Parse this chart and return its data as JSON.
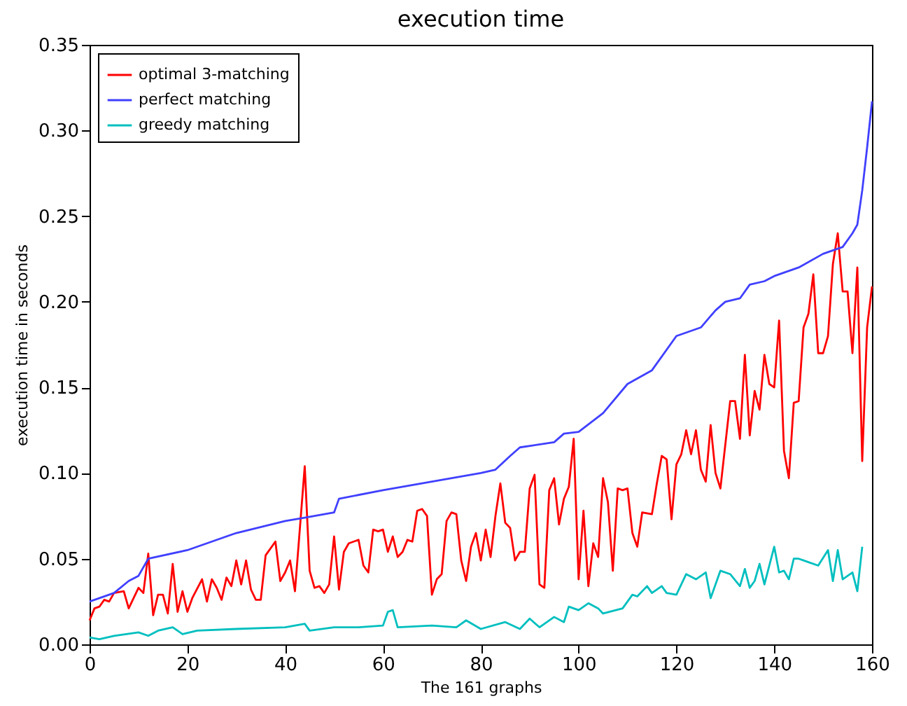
{
  "chart_data": {
    "type": "line",
    "title": "execution time",
    "xlabel": "The 161 graphs",
    "ylabel": "execution time in seconds",
    "xlim": [
      0,
      160
    ],
    "xticks": [
      0,
      20,
      40,
      60,
      80,
      100,
      120,
      140,
      160
    ],
    "ylim": [
      0,
      0.35
    ],
    "yticks": [
      {
        "value": 0,
        "label": "0.00"
      },
      {
        "value": 0.05,
        "label": "0.05"
      },
      {
        "value": 0.1,
        "label": "0.10"
      },
      {
        "value": 0.15,
        "label": "0.15"
      },
      {
        "value": 0.2,
        "label": "0.20"
      },
      {
        "value": 0.25,
        "label": "0.25"
      },
      {
        "value": 0.3,
        "label": "0.30"
      },
      {
        "value": 0.35,
        "label": "0.35"
      }
    ],
    "grid": false,
    "legend": "top left",
    "line_style": "solid",
    "series": [
      {
        "name": "optimal 3-matching",
        "color": "#ff0000",
        "x": [
          0,
          1,
          2,
          3,
          4,
          5,
          7,
          8,
          10,
          11,
          12,
          13,
          14,
          15,
          16,
          17,
          18,
          19,
          20,
          21,
          23,
          24,
          25,
          26,
          27,
          28,
          29,
          30,
          31,
          32,
          33,
          34,
          35,
          36,
          38,
          39,
          40,
          41,
          42,
          44,
          45,
          46,
          47,
          48,
          49,
          50,
          51,
          52,
          53,
          55,
          56,
          57,
          58,
          59,
          60,
          61,
          62,
          63,
          64,
          65,
          66,
          67,
          68,
          69,
          70,
          71,
          72,
          73,
          74,
          75,
          76,
          77,
          78,
          79,
          80,
          81,
          82,
          83,
          84,
          85,
          86,
          87,
          88,
          89,
          90,
          91,
          92,
          93,
          94,
          95,
          96,
          97,
          98,
          99,
          100,
          101,
          102,
          103,
          104,
          105,
          106,
          107,
          108,
          109,
          110,
          111,
          112,
          113,
          115,
          116,
          117,
          118,
          119,
          120,
          121,
          122,
          123,
          124,
          125,
          126,
          127,
          128,
          129,
          131,
          132,
          133,
          134,
          135,
          136,
          137,
          138,
          139,
          140,
          141,
          142,
          143,
          144,
          145,
          146,
          147,
          148,
          149,
          150,
          151,
          152,
          153,
          154,
          155,
          156,
          157,
          158,
          159,
          160
        ],
        "values": [
          0.014,
          0.021,
          0.022,
          0.026,
          0.025,
          0.03,
          0.031,
          0.021,
          0.033,
          0.03,
          0.053,
          0.017,
          0.029,
          0.029,
          0.018,
          0.047,
          0.019,
          0.031,
          0.019,
          0.027,
          0.038,
          0.025,
          0.038,
          0.033,
          0.026,
          0.039,
          0.034,
          0.049,
          0.035,
          0.049,
          0.032,
          0.026,
          0.026,
          0.052,
          0.06,
          0.037,
          0.042,
          0.049,
          0.031,
          0.104,
          0.043,
          0.033,
          0.034,
          0.03,
          0.035,
          0.063,
          0.032,
          0.054,
          0.059,
          0.061,
          0.046,
          0.042,
          0.067,
          0.066,
          0.067,
          0.054,
          0.063,
          0.051,
          0.054,
          0.061,
          0.06,
          0.078,
          0.079,
          0.075,
          0.029,
          0.038,
          0.041,
          0.072,
          0.077,
          0.076,
          0.049,
          0.037,
          0.057,
          0.065,
          0.049,
          0.067,
          0.051,
          0.075,
          0.094,
          0.071,
          0.068,
          0.049,
          0.054,
          0.054,
          0.091,
          0.099,
          0.035,
          0.033,
          0.09,
          0.097,
          0.07,
          0.085,
          0.092,
          0.12,
          0.038,
          0.078,
          0.034,
          0.059,
          0.051,
          0.097,
          0.083,
          0.043,
          0.091,
          0.09,
          0.091,
          0.065,
          0.057,
          0.077,
          0.076,
          0.094,
          0.11,
          0.108,
          0.073,
          0.105,
          0.111,
          0.125,
          0.111,
          0.125,
          0.102,
          0.095,
          0.128,
          0.1,
          0.091,
          0.142,
          0.142,
          0.12,
          0.169,
          0.122,
          0.148,
          0.137,
          0.169,
          0.152,
          0.15,
          0.189,
          0.113,
          0.097,
          0.141,
          0.142,
          0.185,
          0.193,
          0.216,
          0.17,
          0.17,
          0.18,
          0.222,
          0.24,
          0.206,
          0.206,
          0.17,
          0.22,
          0.107,
          0.185,
          0.209
        ]
      },
      {
        "name": "perfect matching",
        "color": "#4040ff",
        "x": [
          0,
          5,
          8,
          10,
          12,
          20,
          25,
          30,
          40,
          44,
          50,
          51,
          60,
          70,
          80,
          83,
          86,
          88,
          95,
          97,
          100,
          105,
          110,
          115,
          120,
          125,
          128,
          130,
          133,
          135,
          138,
          140,
          145,
          150,
          154,
          156,
          157,
          158,
          159,
          160
        ],
        "values": [
          0.025,
          0.03,
          0.037,
          0.04,
          0.05,
          0.055,
          0.06,
          0.065,
          0.072,
          0.074,
          0.077,
          0.085,
          0.09,
          0.095,
          0.1,
          0.102,
          0.11,
          0.115,
          0.118,
          0.123,
          0.124,
          0.135,
          0.152,
          0.16,
          0.18,
          0.185,
          0.195,
          0.2,
          0.202,
          0.21,
          0.212,
          0.215,
          0.22,
          0.228,
          0.232,
          0.24,
          0.245,
          0.265,
          0.29,
          0.317
        ]
      },
      {
        "name": "greedy matching",
        "color": "#00bfbf",
        "x": [
          0,
          2,
          5,
          10,
          12,
          14,
          17,
          19,
          22,
          30,
          40,
          44,
          45,
          50,
          55,
          60,
          61,
          62,
          63,
          70,
          75,
          77,
          80,
          85,
          88,
          90,
          92,
          95,
          97,
          98,
          100,
          102,
          104,
          105,
          109,
          111,
          112,
          114,
          115,
          117,
          118,
          120,
          122,
          124,
          126,
          127,
          129,
          131,
          133,
          134,
          135,
          136,
          137,
          138,
          140,
          141,
          142,
          143,
          144,
          145,
          146,
          147,
          149,
          151,
          152,
          153,
          154,
          156,
          157,
          158
        ],
        "values": [
          0.004,
          0.003,
          0.005,
          0.007,
          0.005,
          0.008,
          0.01,
          0.006,
          0.008,
          0.009,
          0.01,
          0.012,
          0.008,
          0.01,
          0.01,
          0.011,
          0.019,
          0.02,
          0.01,
          0.011,
          0.01,
          0.014,
          0.009,
          0.013,
          0.009,
          0.015,
          0.01,
          0.016,
          0.013,
          0.022,
          0.02,
          0.024,
          0.021,
          0.018,
          0.021,
          0.029,
          0.028,
          0.034,
          0.03,
          0.034,
          0.03,
          0.029,
          0.041,
          0.038,
          0.042,
          0.027,
          0.043,
          0.041,
          0.034,
          0.044,
          0.033,
          0.037,
          0.047,
          0.035,
          0.057,
          0.042,
          0.043,
          0.038,
          0.05,
          0.05,
          0.049,
          0.048,
          0.046,
          0.055,
          0.037,
          0.055,
          0.038,
          0.042,
          0.031,
          0.057
        ]
      }
    ]
  }
}
